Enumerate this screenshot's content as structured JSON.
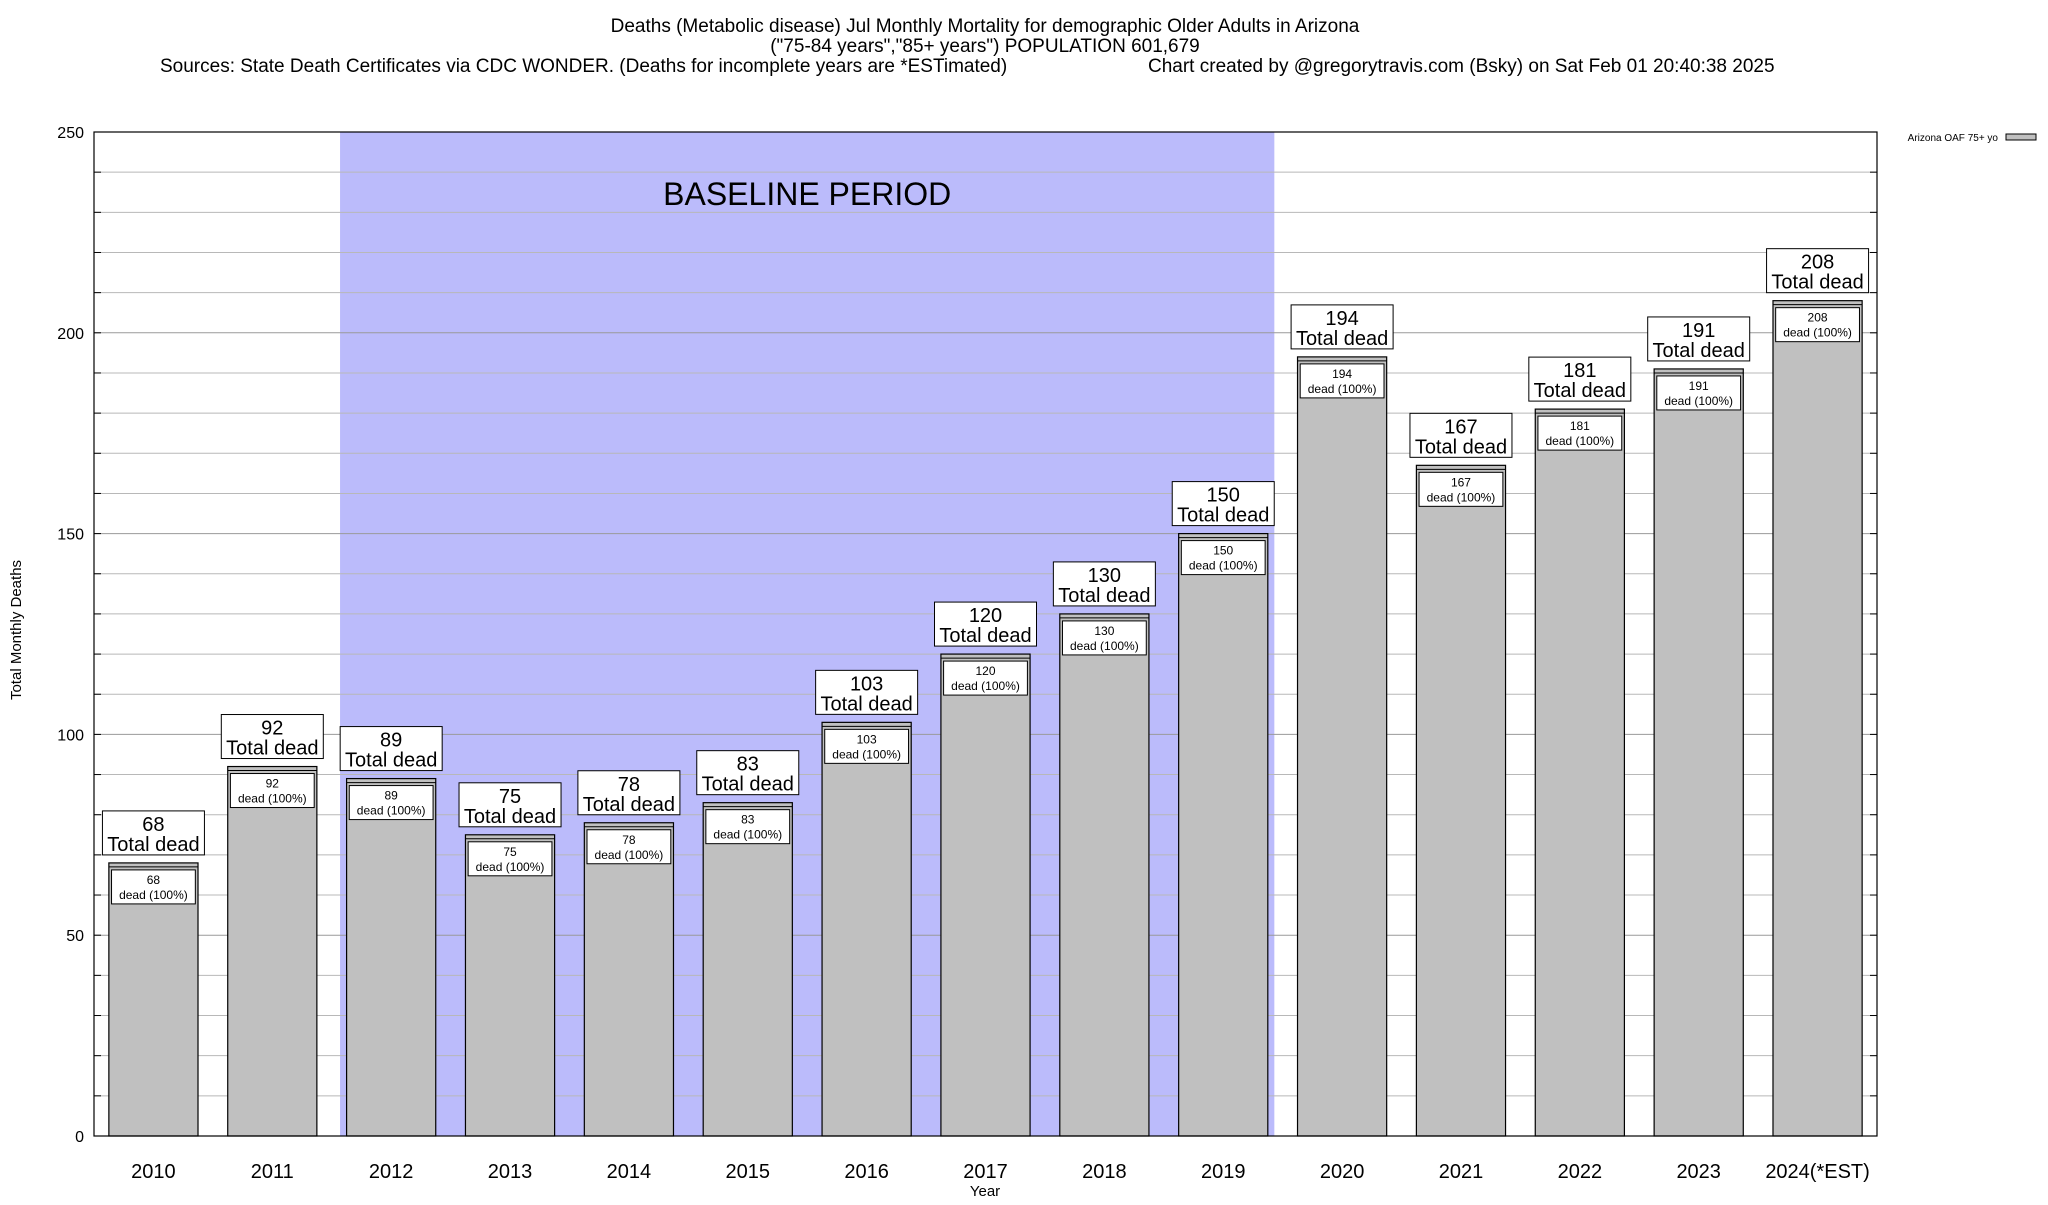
{
  "chart_data": {
    "type": "bar",
    "title": "Deaths (Metabolic disease) Jul Monthly Mortality for demographic Older Adults in Arizona",
    "subtitle": "(\"75-84 years\",\"85+ years\") POPULATION 601,679",
    "sources": "Sources: State Death Certificates via CDC WONDER. (Deaths for incomplete years are *ESTimated)",
    "credit": "Chart created by @gregorytravis.com (Bsky) on Sat Feb 01 20:40:38 2025",
    "xlabel": "Year",
    "ylabel": "Total Monthly Deaths",
    "ylim": [
      0,
      250
    ],
    "yticks": [
      0,
      50,
      100,
      150,
      200,
      250
    ],
    "grid": true,
    "legend": {
      "position": "top-right",
      "entries": [
        "Arizona OAF 75+ yo"
      ]
    },
    "baseline": {
      "label": "BASELINE PERIOD",
      "start": "2012",
      "end": "2019",
      "color": "#bbbbfb"
    },
    "bar_color": "#c0c0c0",
    "categories": [
      "2010",
      "2011",
      "2012",
      "2013",
      "2014",
      "2015",
      "2016",
      "2017",
      "2018",
      "2019",
      "2020",
      "2021",
      "2022",
      "2023",
      "2024(*EST)"
    ],
    "series": [
      {
        "name": "Arizona OAF 75+ yo",
        "values": [
          68,
          92,
          89,
          75,
          78,
          83,
          103,
          120,
          130,
          150,
          194,
          167,
          181,
          191,
          208
        ]
      }
    ],
    "total_label": "Total dead",
    "inner_label": "dead (100%)"
  }
}
